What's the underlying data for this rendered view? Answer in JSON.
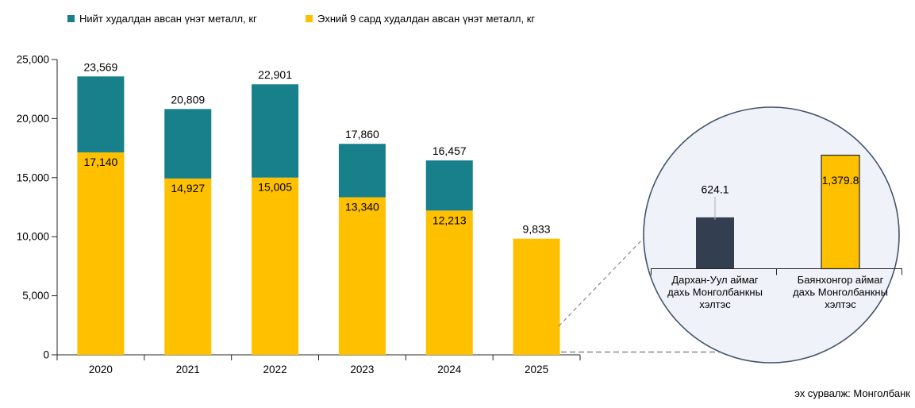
{
  "legend": {
    "items": [
      {
        "label": "Нийт худалдан авсан үнэт металл, кг",
        "color": "#17808A"
      },
      {
        "label": "Эхний 9 сард худалдан авсан үнэт металл, кг",
        "color": "#FFC000"
      }
    ]
  },
  "source_note": "эх сурвалж: Монголбанк",
  "colors": {
    "teal": "#17808A",
    "gold": "#FFC000",
    "dark_slate": "#333F50",
    "inset_fill": "#EFF3F9",
    "inset_stroke": "#44546A",
    "axis": "#262626",
    "connector": "#8A8A8A",
    "leader": "#AFAFAF"
  },
  "chart_data": [
    {
      "type": "bar",
      "stacked": true,
      "title": "",
      "xlabel": "",
      "ylabel": "",
      "grid": false,
      "legend_position": "top",
      "categories": [
        "2020",
        "2021",
        "2022",
        "2023",
        "2024",
        "2025"
      ],
      "series": [
        {
          "name": "Нийт худалдан авсан үнэт металл, кг",
          "color": "#17808A",
          "values": [
            23569,
            20809,
            22901,
            17860,
            16457,
            null
          ],
          "labels": [
            "23,569",
            "20,809",
            "22,901",
            "17,860",
            "16,457",
            null
          ]
        },
        {
          "name": "Эхний 9 сард худалдан авсан үнэт металл, кг",
          "color": "#FFC000",
          "values": [
            17140,
            14927,
            15005,
            13340,
            12213,
            9833
          ],
          "labels": [
            "17,140",
            "14,927",
            "15,005",
            "13,340",
            "12,213",
            "9,833"
          ]
        }
      ],
      "ylim": [
        0,
        25000
      ],
      "ytick_values": [
        0,
        5000,
        10000,
        15000,
        20000,
        25000
      ],
      "ytick_labels": [
        "0",
        "5,000",
        "10,000",
        "15,000",
        "20,000",
        "25,000"
      ]
    },
    {
      "type": "bar",
      "title": "",
      "categories": [
        [
          "Дархан-Уул аймаг",
          "дахь Монголбанкны",
          "хэлтэс"
        ],
        [
          "Баянхонгор аймаг",
          "дахь Монголбанкны",
          "хэлтэс"
        ]
      ],
      "values": [
        624.1,
        1379.8
      ],
      "value_labels": [
        "624.1",
        "1,379.8"
      ],
      "bar_colors": [
        "#333F50",
        "#FFC000"
      ],
      "ylim": [
        0,
        1380
      ]
    }
  ]
}
